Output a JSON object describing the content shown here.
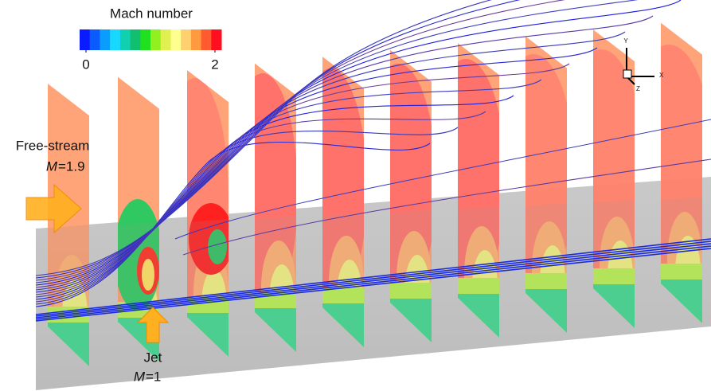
{
  "figure": {
    "colorbar": {
      "title": "Mach number",
      "min": 0,
      "max": 2,
      "ticks": [
        0,
        2
      ],
      "colors": [
        "#0a1cff",
        "#0a5cff",
        "#0a9cff",
        "#18d8ff",
        "#10d0b0",
        "#10c070",
        "#20e020",
        "#90f020",
        "#e0f050",
        "#ffff90",
        "#ffd070",
        "#ff9a40",
        "#ff5a30",
        "#ff1020"
      ]
    },
    "free_stream": {
      "label": "Free-stream",
      "symbol": "M",
      "value_text": "=1.9"
    },
    "jet": {
      "label": "Jet",
      "symbol": "M",
      "value_text": "=1"
    },
    "axes_triad": {
      "y": "Y",
      "x": "X",
      "z": "Z"
    }
  }
}
